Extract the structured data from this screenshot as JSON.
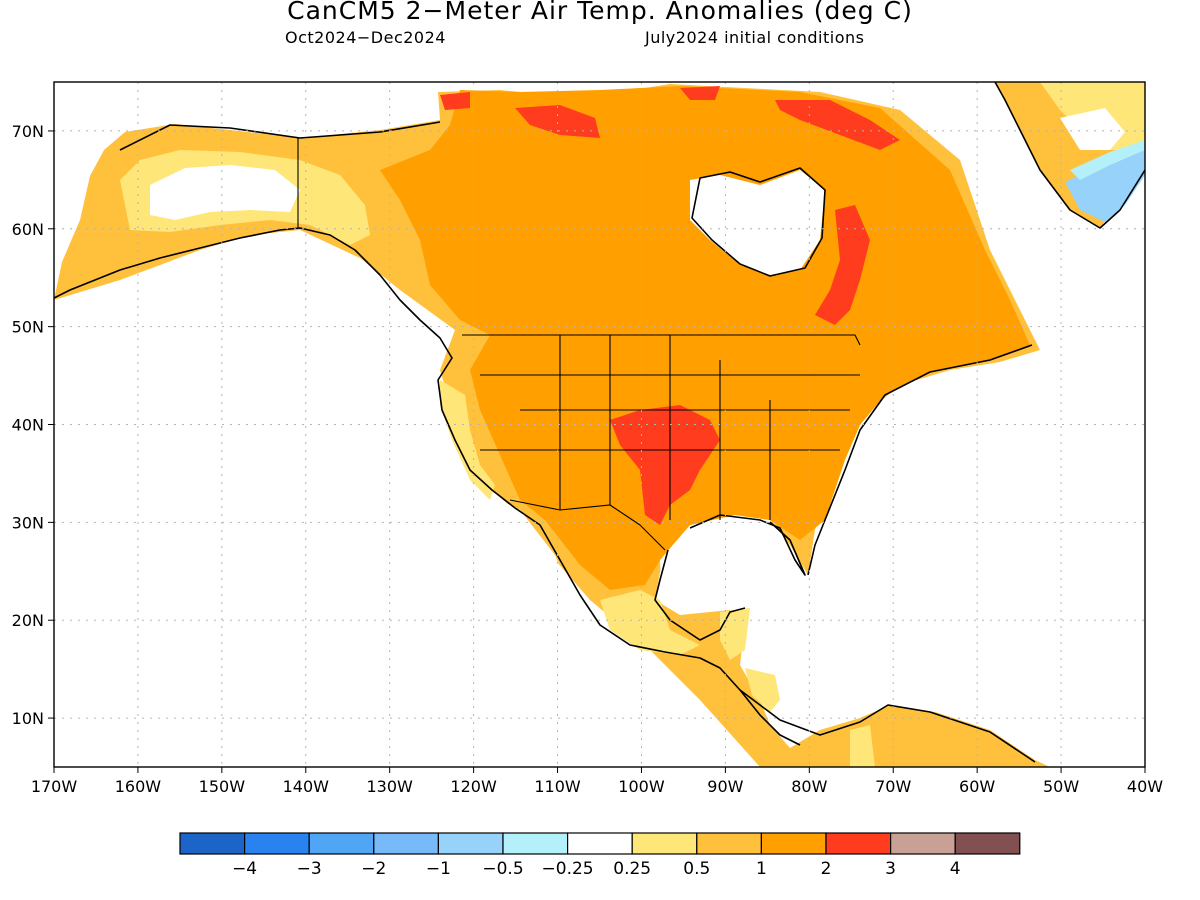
{
  "title": "CanCM5 2−Meter Air Temp. Anomalies (deg C)",
  "subtitle_left": "Oct2024−Dec2024",
  "subtitle_right": "July2024 initial conditions",
  "map": {
    "lon_range": [
      -170,
      -40
    ],
    "lat_range": [
      5,
      75
    ],
    "lon_ticks": [
      "170W",
      "160W",
      "150W",
      "140W",
      "130W",
      "120W",
      "110W",
      "100W",
      "90W",
      "80W",
      "70W",
      "60W",
      "50W",
      "40W"
    ],
    "lat_ticks": [
      "10N",
      "20N",
      "30N",
      "40N",
      "50N",
      "60N",
      "70N"
    ],
    "grid": "dotted"
  },
  "legend": {
    "labels": [
      "−4",
      "−3",
      "−2",
      "−1",
      "−0.5",
      "−0.25",
      "0.25",
      "0.5",
      "1",
      "2",
      "3",
      "4"
    ],
    "colors": [
      "#1c64c8",
      "#2882f0",
      "#50a5f5",
      "#78b9fa",
      "#96d2fa",
      "#b4f0fa",
      "#ffffff",
      "#ffe678",
      "#ffc03c",
      "#ffa000",
      "#ff3c1e",
      "#c8a096",
      "#825050"
    ]
  },
  "colors": {
    "ocean": "#ffffff",
    "coast": "#000000",
    "grid": "#b4b4b4"
  }
}
